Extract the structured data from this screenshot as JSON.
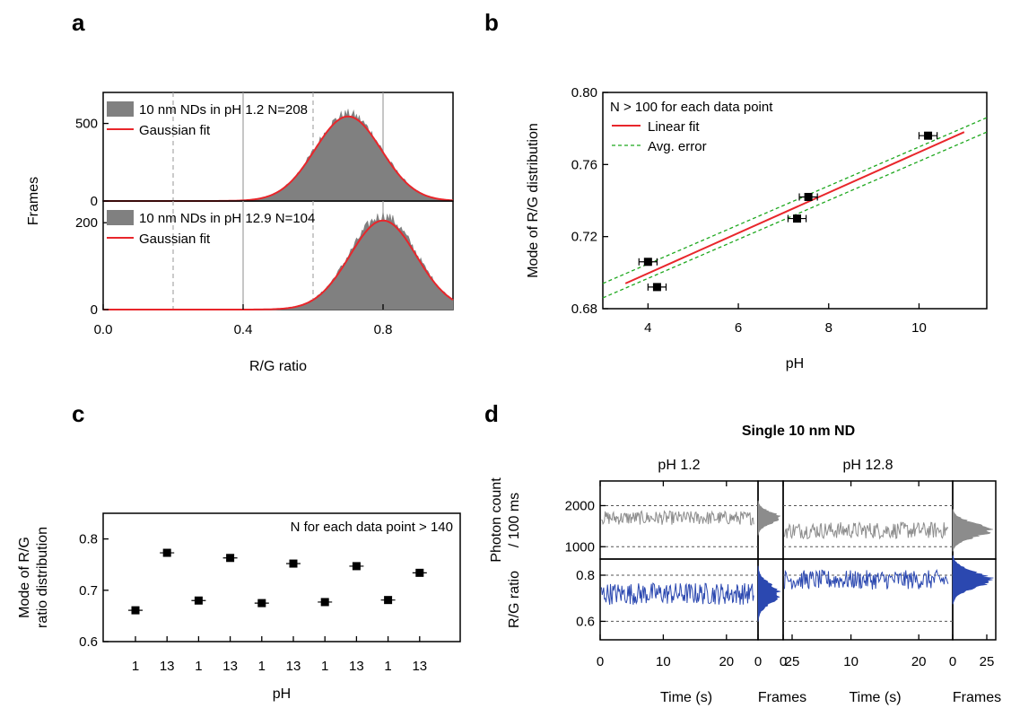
{
  "chart_data": [
    {
      "panel": "a",
      "type": "area",
      "xlabel": "R/G ratio",
      "ylabel": "Frames",
      "x_ticks": [
        "0.0",
        "0.4",
        "0.8"
      ],
      "xlim": [
        0.0,
        1.0
      ],
      "subplots": [
        {
          "ylim": [
            0,
            700
          ],
          "y_ticks": [
            "0",
            "500"
          ],
          "series": [
            {
              "name": "10 nm NDs in pH 1.2 N=208",
              "kind": "histogram",
              "color": "#808080",
              "center": 0.7,
              "sigma": 0.095,
              "peak": 560
            },
            {
              "name": "Gaussian fit",
              "kind": "line",
              "color": "#e8262b",
              "center": 0.7,
              "sigma": 0.095,
              "peak": 545
            }
          ],
          "vlines_dashed": [
            0.2,
            0.6
          ],
          "vlines_solid": [
            0.4,
            0.8
          ]
        },
        {
          "ylim": [
            0,
            250
          ],
          "y_ticks": [
            "0",
            "200"
          ],
          "series": [
            {
              "name": "10 nm NDs in pH 12.9 N=104",
              "kind": "histogram",
              "color": "#808080",
              "center": 0.8,
              "sigma": 0.095,
              "peak": 215
            },
            {
              "name": "Gaussian fit",
              "kind": "line",
              "color": "#e8262b",
              "center": 0.8,
              "sigma": 0.095,
              "peak": 205
            }
          ],
          "vlines_dashed": [
            0.2,
            0.6
          ],
          "vlines_solid": [
            0.4,
            0.8
          ]
        }
      ]
    },
    {
      "panel": "b",
      "type": "scatter",
      "annotation": "N > 100 for each data point",
      "xlabel": "pH",
      "ylabel": "Mode of R/G distribution",
      "xlim": [
        3,
        11.5
      ],
      "ylim": [
        0.68,
        0.8
      ],
      "x_ticks": [
        "4",
        "6",
        "8",
        "10"
      ],
      "y_ticks": [
        "0.68",
        "0.72",
        "0.76",
        "0.80"
      ],
      "points": [
        {
          "x": 4.0,
          "y": 0.706,
          "xerr": 0.2
        },
        {
          "x": 4.2,
          "y": 0.692,
          "xerr": 0.2
        },
        {
          "x": 7.3,
          "y": 0.73,
          "xerr": 0.2
        },
        {
          "x": 7.55,
          "y": 0.742,
          "xerr": 0.2
        },
        {
          "x": 10.2,
          "y": 0.776,
          "xerr": 0.2
        }
      ],
      "linear_fit": {
        "name": "Linear fit",
        "color": "#e8262b",
        "x": [
          3.5,
          11.0
        ],
        "y": [
          0.694,
          0.778
        ]
      },
      "avg_error": {
        "name": "Avg. error",
        "color": "#1fa81f",
        "x": [
          3.0,
          11.5
        ],
        "upper": [
          0.694,
          0.786
        ],
        "lower": [
          0.686,
          0.778
        ]
      }
    },
    {
      "panel": "c",
      "type": "scatter",
      "annotation": "N for each data point > 140",
      "xlabel": "pH",
      "ylabel_lines": [
        "Mode of R/G",
        "ratio distribution"
      ],
      "ylim": [
        0.6,
        0.85
      ],
      "y_ticks": [
        "0.6",
        "0.7",
        "0.8"
      ],
      "categories": [
        "1",
        "13",
        "1",
        "13",
        "1",
        "13",
        "1",
        "13",
        "1",
        "13"
      ],
      "values": [
        0.661,
        0.773,
        0.68,
        0.763,
        0.675,
        0.752,
        0.677,
        0.747,
        0.681,
        0.734
      ]
    },
    {
      "panel": "d",
      "type": "line",
      "title": "Single 10 nm ND",
      "columns": [
        {
          "label": "pH 1.2",
          "time_ticks": [
            "0",
            "10",
            "20"
          ],
          "xlabel": "Time (s)"
        },
        {
          "label": "pH 12.8",
          "time_ticks": [
            "0",
            "10",
            "20"
          ],
          "xlabel": "Time (s)"
        }
      ],
      "hist_ticks": [
        "0",
        "25"
      ],
      "hist_xlabel": "Frames",
      "time_range": [
        0,
        25
      ],
      "rows": [
        {
          "ylabel_lines": [
            "Photon count",
            "/ 100 ms"
          ],
          "ylim": [
            700,
            2600
          ],
          "y_ticks": [
            "1000",
            "2000"
          ],
          "dashed": [
            1000,
            2000
          ],
          "color": "#8c8c8c",
          "series": [
            {
              "name": "pH 1.2",
              "mean": 1700,
              "noise": 140
            },
            {
              "name": "pH 12.8",
              "mean": 1400,
              "noise": 170
            }
          ]
        },
        {
          "ylabel_lines": [
            "R/G ratio"
          ],
          "ylim": [
            0.52,
            0.87
          ],
          "y_ticks": [
            "0.6",
            "0.8"
          ],
          "dashed": [
            0.6,
            0.8
          ],
          "color": "#2b48b0",
          "series": [
            {
              "name": "pH 1.2",
              "mean": 0.72,
              "noise": 0.04
            },
            {
              "name": "pH 12.8",
              "mean": 0.78,
              "noise": 0.035
            }
          ]
        }
      ]
    }
  ],
  "panel_labels": {
    "a": "a",
    "b": "b",
    "c": "c",
    "d": "d"
  }
}
